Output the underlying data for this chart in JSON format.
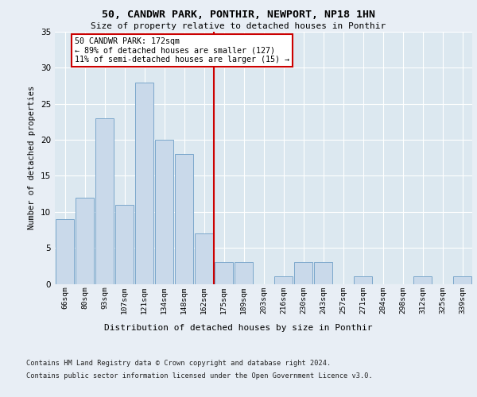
{
  "title": "50, CANDWR PARK, PONTHIR, NEWPORT, NP18 1HN",
  "subtitle": "Size of property relative to detached houses in Ponthir",
  "xlabel": "Distribution of detached houses by size in Ponthir",
  "ylabel": "Number of detached properties",
  "categories": [
    "66sqm",
    "80sqm",
    "93sqm",
    "107sqm",
    "121sqm",
    "134sqm",
    "148sqm",
    "162sqm",
    "175sqm",
    "189sqm",
    "203sqm",
    "216sqm",
    "230sqm",
    "243sqm",
    "257sqm",
    "271sqm",
    "284sqm",
    "298sqm",
    "312sqm",
    "325sqm",
    "339sqm"
  ],
  "values": [
    9,
    12,
    23,
    11,
    28,
    20,
    18,
    7,
    3,
    3,
    0,
    1,
    3,
    3,
    0,
    1,
    0,
    0,
    1,
    0,
    1
  ],
  "bar_color": "#c9d9ea",
  "bar_edge_color": "#7ba7cc",
  "vline_x": 7.5,
  "vline_color": "#cc0000",
  "annotation_text": "50 CANDWR PARK: 172sqm\n← 89% of detached houses are smaller (127)\n11% of semi-detached houses are larger (15) →",
  "annotation_box_color": "#ffffff",
  "annotation_box_edge": "#cc0000",
  "ylim": [
    0,
    35
  ],
  "yticks": [
    0,
    5,
    10,
    15,
    20,
    25,
    30,
    35
  ],
  "fig_background_color": "#e8eef5",
  "plot_background_color": "#dce8f0",
  "grid_color": "#ffffff",
  "footer_line1": "Contains HM Land Registry data © Crown copyright and database right 2024.",
  "footer_line2": "Contains public sector information licensed under the Open Government Licence v3.0."
}
